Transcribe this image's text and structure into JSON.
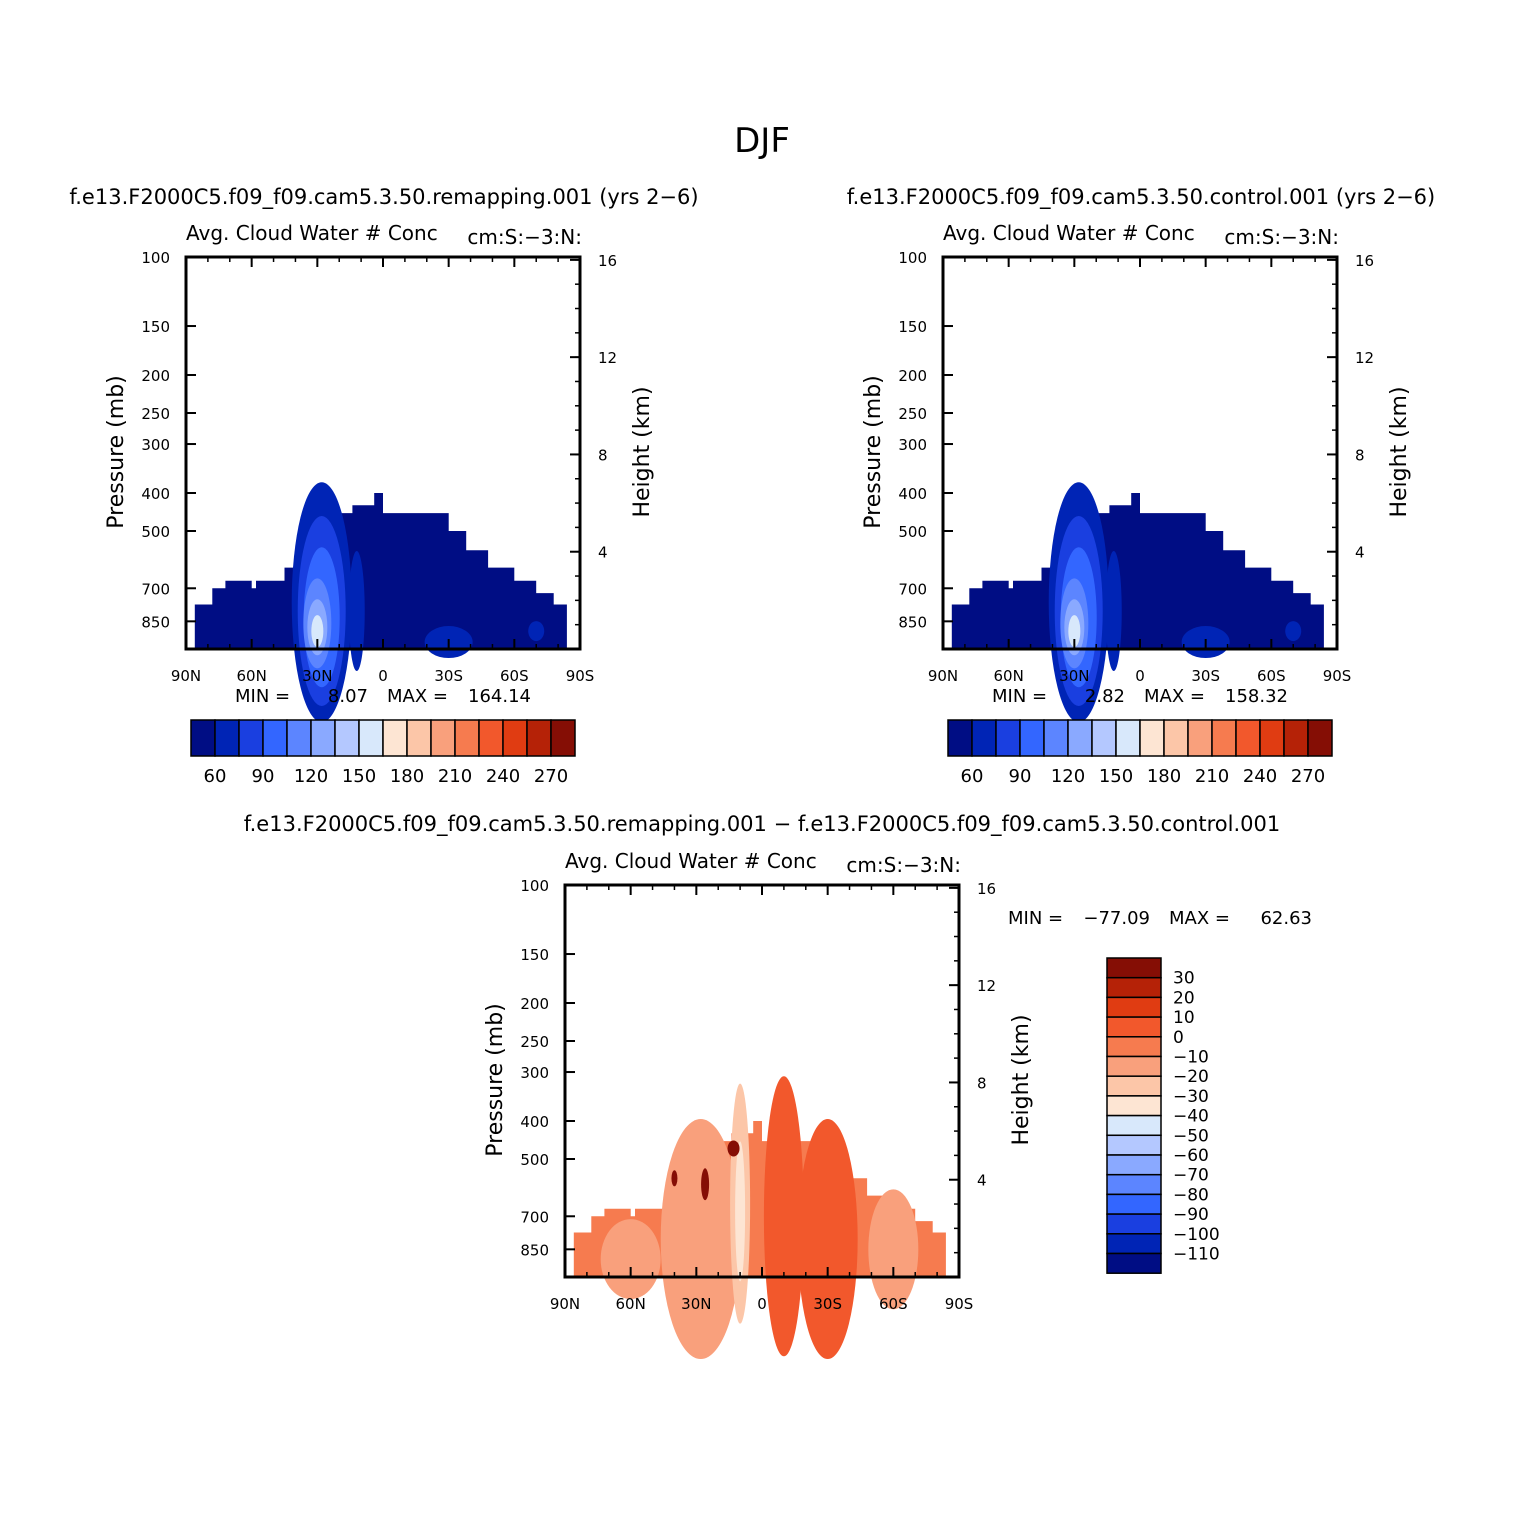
{
  "page_title": "DJF",
  "colors": {
    "blue_scale": [
      "#000d84",
      "#0024b5",
      "#1a3fe0",
      "#3366ff",
      "#5c85ff",
      "#8aa9ff",
      "#b4c8ff",
      "#d8e8fb"
    ],
    "red_scale": [
      "#fde5d3",
      "#fcc6a8",
      "#f9a07c",
      "#f67b4f",
      "#f2582c",
      "#e03c12",
      "#b52207",
      "#850e05"
    ],
    "outline": "#000000"
  },
  "panels": [
    {
      "case_title": "f.e13.F2000C5.f09_f09.cam5.3.50.remapping.001 (yrs 2−6)",
      "var_label": "Avg. Cloud Water # Conc",
      "units_label": "cm:S:−3:N:",
      "y_label": "Pressure (mb)",
      "y2_label": "Height (km)",
      "min_label": "MIN =",
      "min_value": "8.07",
      "max_label": "MAX =",
      "max_value": "164.14"
    },
    {
      "case_title": "f.e13.F2000C5.f09_f09.cam5.3.50.control.001 (yrs 2−6)",
      "var_label": "Avg. Cloud Water # Conc",
      "units_label": "cm:S:−3:N:",
      "y_label": "Pressure (mb)",
      "y2_label": "Height (km)",
      "min_label": "MIN =",
      "min_value": "2.82",
      "max_label": "MAX =",
      "max_value": "158.32"
    },
    {
      "case_title": "f.e13.F2000C5.f09_f09.cam5.3.50.remapping.001 − f.e13.F2000C5.f09_f09.cam5.3.50.control.001",
      "var_label": "Avg. Cloud Water # Conc",
      "units_label": "cm:S:−3:N:",
      "y_label": "Pressure (mb)",
      "y2_label": "Height (km)",
      "min_label": "MIN =",
      "min_value": "−77.09",
      "max_label": "MAX =",
      "max_value": "62.63"
    }
  ],
  "chart_data": [
    {
      "type": "heatmap",
      "x_ticks": [
        "90N",
        "60N",
        "30N",
        "0",
        "30S",
        "60S",
        "90S"
      ],
      "x_values": [
        90,
        60,
        30,
        0,
        -30,
        -60,
        -90
      ],
      "y_ticks": [
        "100",
        "150",
        "200",
        "250",
        "300",
        "400",
        "500",
        "700",
        "850"
      ],
      "y_values": [
        100,
        150,
        200,
        250,
        300,
        400,
        500,
        700,
        850
      ],
      "y_scale": "log",
      "y_range": [
        100,
        1000
      ],
      "y2_ticks": [
        "16",
        "12",
        "8",
        "4"
      ],
      "y2_values": [
        16,
        12,
        8,
        4
      ],
      "colorbar_labels": [
        "60",
        "90",
        "120",
        "150",
        "180",
        "210",
        "240",
        "270"
      ],
      "colorbar_orientation": "horizontal"
    },
    {
      "type": "heatmap",
      "x_ticks": [
        "90N",
        "60N",
        "30N",
        "0",
        "30S",
        "60S",
        "90S"
      ],
      "x_values": [
        90,
        60,
        30,
        0,
        -30,
        -60,
        -90
      ],
      "y_ticks": [
        "100",
        "150",
        "200",
        "250",
        "300",
        "400",
        "500",
        "700",
        "850"
      ],
      "y_values": [
        100,
        150,
        200,
        250,
        300,
        400,
        500,
        700,
        850
      ],
      "y_scale": "log",
      "y_range": [
        100,
        1000
      ],
      "y2_ticks": [
        "16",
        "12",
        "8",
        "4"
      ],
      "y2_values": [
        16,
        12,
        8,
        4
      ],
      "colorbar_labels": [
        "60",
        "90",
        "120",
        "150",
        "180",
        "210",
        "240",
        "270"
      ],
      "colorbar_orientation": "horizontal"
    },
    {
      "type": "heatmap",
      "x_ticks": [
        "90N",
        "60N",
        "30N",
        "0",
        "30S",
        "60S",
        "90S"
      ],
      "x_values": [
        90,
        60,
        30,
        0,
        -30,
        -60,
        -90
      ],
      "y_ticks": [
        "100",
        "150",
        "200",
        "250",
        "300",
        "400",
        "500",
        "700",
        "850"
      ],
      "y_values": [
        100,
        150,
        200,
        250,
        300,
        400,
        500,
        700,
        850
      ],
      "y_scale": "log",
      "y_range": [
        100,
        1000
      ],
      "y2_ticks": [
        "16",
        "12",
        "8",
        "4"
      ],
      "y2_values": [
        16,
        12,
        8,
        4
      ],
      "colorbar_labels": [
        "30",
        "20",
        "10",
        "0",
        "−10",
        "−20",
        "−30",
        "−40",
        "−50",
        "−60",
        "−70",
        "−80",
        "−90",
        "−100",
        "−110"
      ],
      "colorbar_orientation": "vertical"
    }
  ]
}
